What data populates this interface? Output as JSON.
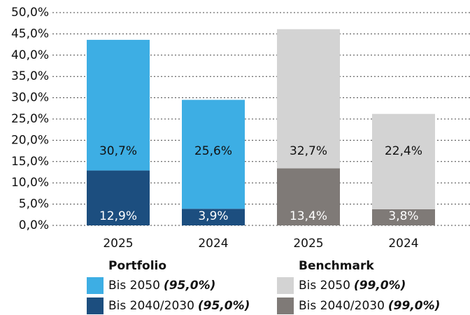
{
  "chart_data": {
    "type": "stacked_bar",
    "categories": [
      "2025",
      "2024",
      "2025",
      "2024"
    ],
    "ylim": [
      0,
      50
    ],
    "yticks": [
      {
        "value": 0,
        "label": "0,0%"
      },
      {
        "value": 5,
        "label": "5,0%"
      },
      {
        "value": 10,
        "label": "10,0%"
      },
      {
        "value": 15,
        "label": "15,0%"
      },
      {
        "value": 20,
        "label": "20,0%"
      },
      {
        "value": 25,
        "label": "25,0%"
      },
      {
        "value": 30,
        "label": "30,0%"
      },
      {
        "value": 35,
        "label": "35,0%"
      },
      {
        "value": 40,
        "label": "40,0%"
      },
      {
        "value": 45,
        "label": "45,0%"
      },
      {
        "value": 50,
        "label": "50,0%"
      }
    ],
    "grid": true,
    "legend_groups": [
      "Portfolio",
      "Benchmark"
    ],
    "series": [
      {
        "name": "Bis 2040/2030",
        "share": "(95,0%)",
        "group": 0,
        "color": "#1c4e7f",
        "label_color": "#ffffff",
        "values": [
          12.9,
          3.9,
          null,
          null
        ],
        "value_labels": [
          "12,9%",
          "3,9%",
          null,
          null
        ]
      },
      {
        "name": "Bis 2050",
        "share": "(95,0%)",
        "group": 0,
        "color": "#3daee4",
        "label_color": "#111111",
        "values": [
          30.7,
          25.6,
          null,
          null
        ],
        "value_labels": [
          "30,7%",
          "25,6%",
          null,
          null
        ]
      },
      {
        "name": "Bis 2040/2030",
        "share": "(99,0%)",
        "group": 1,
        "color": "#7f7a77",
        "label_color": "#ffffff",
        "values": [
          null,
          null,
          13.4,
          3.8
        ],
        "value_labels": [
          null,
          null,
          "13,4%",
          "3,8%"
        ]
      },
      {
        "name": "Bis 2050",
        "share": "(99,0%)",
        "group": 1,
        "color": "#d3d3d3",
        "label_color": "#111111",
        "values": [
          null,
          null,
          32.7,
          22.4
        ],
        "value_labels": [
          null,
          null,
          "32,7%",
          "22,4%"
        ]
      }
    ]
  }
}
